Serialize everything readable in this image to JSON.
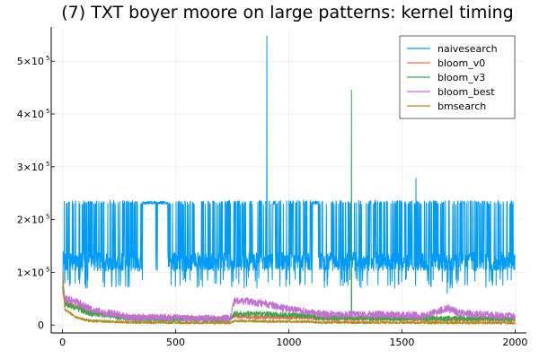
{
  "chart_data": {
    "type": "line",
    "title": "(7) TXT boyer moore on large patterns: kernel timing",
    "xlabel": "",
    "ylabel": "",
    "xlim": [
      -50,
      2050
    ],
    "ylim": [
      -15000,
      565000
    ],
    "grid": true,
    "legend_position": "top-right",
    "x_ticks": [
      {
        "value": 0,
        "label": "0"
      },
      {
        "value": 500,
        "label": "500"
      },
      {
        "value": 1000,
        "label": "1000"
      },
      {
        "value": 1500,
        "label": "1500"
      },
      {
        "value": 2000,
        "label": "2000"
      }
    ],
    "y_ticks": [
      {
        "value": 0,
        "label": "0",
        "exp": ""
      },
      {
        "value": 100000,
        "label": "1×10",
        "exp": "5"
      },
      {
        "value": 200000,
        "label": "2×10",
        "exp": "5"
      },
      {
        "value": 300000,
        "label": "3×10",
        "exp": "5"
      },
      {
        "value": 400000,
        "label": "4×10",
        "exp": "5"
      },
      {
        "value": 500000,
        "label": "5×10",
        "exp": "5"
      }
    ],
    "x_range": [
      1,
      2000
    ],
    "series": [
      {
        "name": "naivesearch",
        "color": "#009af9",
        "description": "jumps between two levels",
        "baseline": [
          [
            1,
            60000
          ],
          [
            3,
            130000
          ],
          [
            10,
            120000
          ],
          [
            2000,
            120000
          ]
        ],
        "noise": 18000,
        "high_level": 232000,
        "high_spans": [
          [
            355,
            412
          ],
          [
            420,
            465
          ],
          [
            1105,
            1130
          ]
        ],
        "spike_density": 0.18,
        "spikes": [
          [
            903,
            548000
          ],
          [
            1562,
            278000
          ],
          [
            1700,
            60000
          ],
          [
            1713,
            70000
          ]
        ]
      },
      {
        "name": "bloom_v0",
        "color": "#e26f46",
        "baseline": [
          [
            1,
            95000
          ],
          [
            10,
            45000
          ],
          [
            40,
            40000
          ],
          [
            120,
            25000
          ],
          [
            300,
            15000
          ],
          [
            740,
            12000
          ],
          [
            760,
            16000
          ],
          [
            1100,
            14000
          ],
          [
            1140,
            12000
          ],
          [
            2000,
            10000
          ]
        ],
        "noise": 4000,
        "spikes": []
      },
      {
        "name": "bloom_v3",
        "color": "#3da44d",
        "baseline": [
          [
            1,
            70000
          ],
          [
            10,
            40000
          ],
          [
            40,
            35000
          ],
          [
            120,
            22000
          ],
          [
            300,
            12000
          ],
          [
            740,
            10000
          ],
          [
            760,
            22000
          ],
          [
            1100,
            18000
          ],
          [
            1140,
            14000
          ],
          [
            2000,
            12000
          ]
        ],
        "noise": 5000,
        "spikes": [
          [
            1277,
            445000
          ]
        ]
      },
      {
        "name": "bloom_best",
        "color": "#c271d2",
        "baseline": [
          [
            1,
            60000
          ],
          [
            10,
            50000
          ],
          [
            60,
            45000
          ],
          [
            120,
            30000
          ],
          [
            300,
            15000
          ],
          [
            740,
            12000
          ],
          [
            760,
            48000
          ],
          [
            900,
            40000
          ],
          [
            1000,
            30000
          ],
          [
            1100,
            24000
          ],
          [
            1150,
            20000
          ],
          [
            1400,
            20000
          ],
          [
            1600,
            18000
          ],
          [
            1700,
            32000
          ],
          [
            1760,
            22000
          ],
          [
            2000,
            16000
          ]
        ],
        "noise": 7000,
        "spikes": []
      },
      {
        "name": "bmsearch",
        "color": "#ac8d18",
        "baseline": [
          [
            1,
            100000
          ],
          [
            10,
            30000
          ],
          [
            60,
            15000
          ],
          [
            120,
            8000
          ],
          [
            300,
            5000
          ],
          [
            740,
            4000
          ],
          [
            760,
            8000
          ],
          [
            1100,
            6000
          ],
          [
            1140,
            5000
          ],
          [
            2000,
            4000
          ]
        ],
        "noise": 2500,
        "spikes": []
      }
    ]
  }
}
